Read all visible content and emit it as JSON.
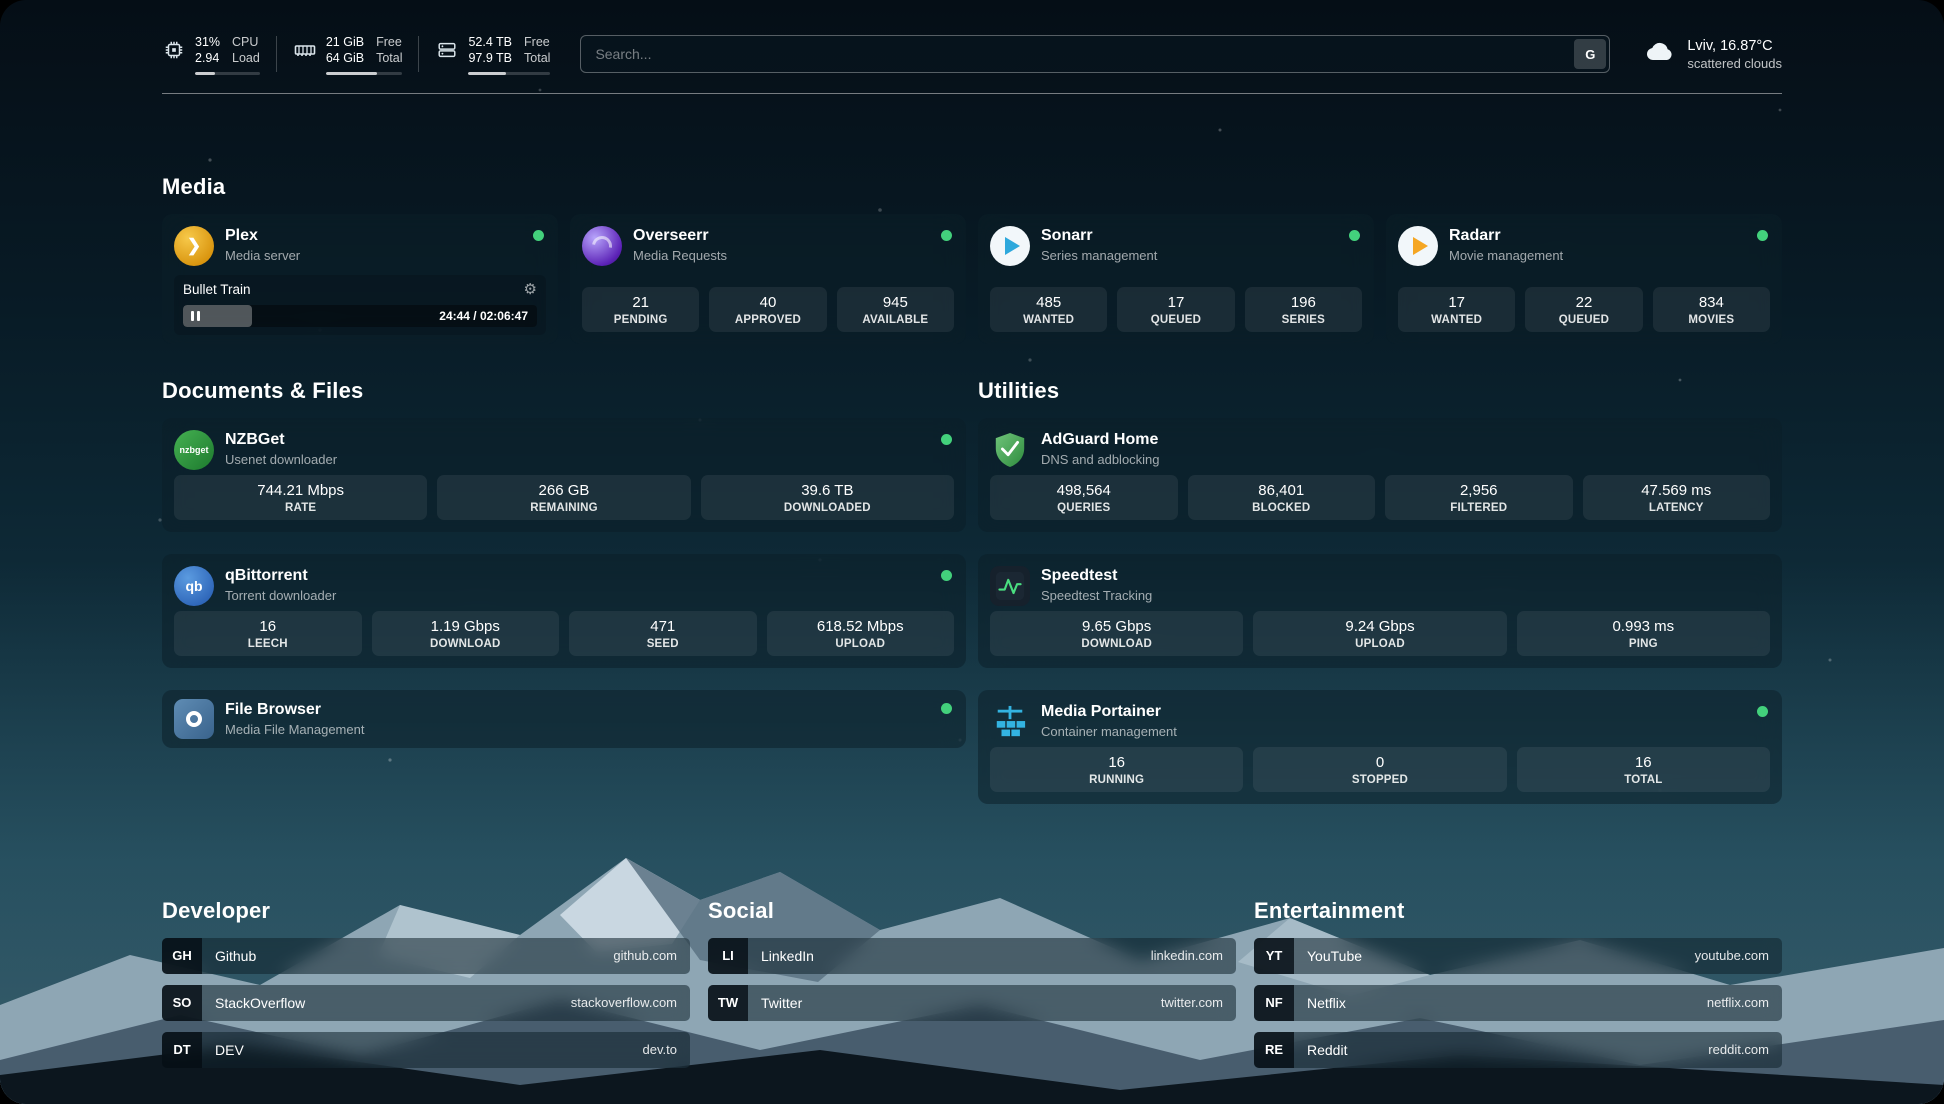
{
  "header": {
    "cpu": {
      "value": "31%",
      "load": "2.94",
      "label_top": "CPU",
      "label_bottom": "Load",
      "bar_percent": 31
    },
    "memory": {
      "free": "21 GiB",
      "total": "64 GiB",
      "label_top": "Free",
      "label_bottom": "Total",
      "bar_percent": 67
    },
    "disk": {
      "free": "52.4 TB",
      "total": "97.9 TB",
      "label_top": "Free",
      "label_bottom": "Total",
      "bar_percent": 46
    },
    "search": {
      "placeholder": "Search...",
      "button_label": "G"
    },
    "weather": {
      "location": "Lviv, 16.87°C",
      "condition": "scattered clouds"
    }
  },
  "icons": {
    "gear": "⚙",
    "plex_chevron": "❯",
    "nzbget_text": "nzbget",
    "qbittorrent_text": "qb"
  },
  "colors": {
    "status_online": "#43d17c",
    "plex_amber": "#d9940e",
    "sonarr_blue": "#2da8dc",
    "radarr_amber": "#f5a623",
    "adguard_green": "#3f9e4d",
    "portainer_blue": "#33b3e1"
  },
  "media": {
    "title": "Media",
    "plex": {
      "name": "Plex",
      "subtitle": "Media server",
      "now_playing": "Bullet Train",
      "time": "24:44 / 02:06:47",
      "progress_percent": 19.5
    },
    "overseerr": {
      "name": "Overseerr",
      "subtitle": "Media Requests",
      "stats": [
        {
          "value": "21",
          "label": "PENDING"
        },
        {
          "value": "40",
          "label": "APPROVED"
        },
        {
          "value": "945",
          "label": "AVAILABLE"
        }
      ]
    },
    "sonarr": {
      "name": "Sonarr",
      "subtitle": "Series management",
      "stats": [
        {
          "value": "485",
          "label": "WANTED"
        },
        {
          "value": "17",
          "label": "QUEUED"
        },
        {
          "value": "196",
          "label": "SERIES"
        }
      ]
    },
    "radarr": {
      "name": "Radarr",
      "subtitle": "Movie management",
      "stats": [
        {
          "value": "17",
          "label": "WANTED"
        },
        {
          "value": "22",
          "label": "QUEUED"
        },
        {
          "value": "834",
          "label": "MOVIES"
        }
      ]
    }
  },
  "documents": {
    "title": "Documents & Files",
    "nzbget": {
      "name": "NZBGet",
      "subtitle": "Usenet downloader",
      "stats": [
        {
          "value": "744.21 Mbps",
          "label": "RATE"
        },
        {
          "value": "266 GB",
          "label": "REMAINING"
        },
        {
          "value": "39.6 TB",
          "label": "DOWNLOADED"
        }
      ]
    },
    "qbittorrent": {
      "name": "qBittorrent",
      "subtitle": "Torrent downloader",
      "stats": [
        {
          "value": "16",
          "label": "LEECH"
        },
        {
          "value": "1.19 Gbps",
          "label": "DOWNLOAD"
        },
        {
          "value": "471",
          "label": "SEED"
        },
        {
          "value": "618.52 Mbps",
          "label": "UPLOAD"
        }
      ]
    },
    "filebrowser": {
      "name": "File Browser",
      "subtitle": "Media File Management"
    }
  },
  "utilities": {
    "title": "Utilities",
    "adguard": {
      "name": "AdGuard Home",
      "subtitle": "DNS and adblocking",
      "stats": [
        {
          "value": "498,564",
          "label": "QUERIES"
        },
        {
          "value": "86,401",
          "label": "BLOCKED"
        },
        {
          "value": "2,956",
          "label": "FILTERED"
        },
        {
          "value": "47.569 ms",
          "label": "LATENCY"
        }
      ]
    },
    "speedtest": {
      "name": "Speedtest",
      "subtitle": "Speedtest Tracking",
      "stats": [
        {
          "value": "9.65 Gbps",
          "label": "DOWNLOAD"
        },
        {
          "value": "9.24 Gbps",
          "label": "UPLOAD"
        },
        {
          "value": "0.993 ms",
          "label": "PING"
        }
      ]
    },
    "portainer": {
      "name": "Media Portainer",
      "subtitle": "Container management",
      "stats": [
        {
          "value": "16",
          "label": "RUNNING"
        },
        {
          "value": "0",
          "label": "STOPPED"
        },
        {
          "value": "16",
          "label": "TOTAL"
        }
      ]
    }
  },
  "bookmarks": {
    "developer": {
      "title": "Developer",
      "items": [
        {
          "abbr": "GH",
          "name": "Github",
          "url": "github.com"
        },
        {
          "abbr": "SO",
          "name": "StackOverflow",
          "url": "stackoverflow.com"
        },
        {
          "abbr": "DT",
          "name": "DEV",
          "url": "dev.to"
        }
      ]
    },
    "social": {
      "title": "Social",
      "items": [
        {
          "abbr": "LI",
          "name": "LinkedIn",
          "url": "linkedin.com"
        },
        {
          "abbr": "TW",
          "name": "Twitter",
          "url": "twitter.com"
        }
      ]
    },
    "entertainment": {
      "title": "Entertainment",
      "items": [
        {
          "abbr": "YT",
          "name": "YouTube",
          "url": "youtube.com"
        },
        {
          "abbr": "NF",
          "name": "Netflix",
          "url": "netflix.com"
        },
        {
          "abbr": "RE",
          "name": "Reddit",
          "url": "reddit.com"
        }
      ]
    }
  }
}
